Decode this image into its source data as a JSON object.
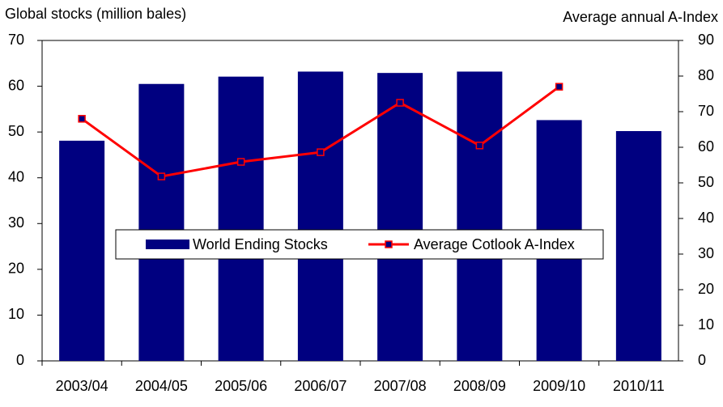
{
  "chart_data": {
    "type": "bar_line",
    "y_label": "Global stocks (million bales)",
    "y2_label": "Average annual A-Index",
    "categories": [
      "2003/04",
      "2004/05",
      "2005/06",
      "2006/07",
      "2007/08",
      "2008/09",
      "2009/10",
      "2010/11"
    ],
    "series": [
      {
        "name": "World Ending Stocks",
        "type": "bar",
        "color": "#000080",
        "values": [
          48.1,
          60.5,
          62.1,
          63.2,
          62.9,
          63.2,
          52.6,
          50.2
        ]
      },
      {
        "name": "Average Cotlook A-Index",
        "type": "line",
        "axis": "y2",
        "color": "#ff0000",
        "marker_color": "#000080",
        "values": [
          68.0,
          51.8,
          55.9,
          58.6,
          72.5,
          60.5,
          77.0,
          null
        ]
      }
    ],
    "ylim": [
      0,
      70
    ],
    "yticks": [
      0,
      10,
      20,
      30,
      40,
      50,
      60,
      70
    ],
    "y2lim": [
      0,
      90
    ],
    "y2ticks": [
      0,
      10,
      20,
      30,
      40,
      50,
      60,
      70,
      80,
      90
    ]
  }
}
